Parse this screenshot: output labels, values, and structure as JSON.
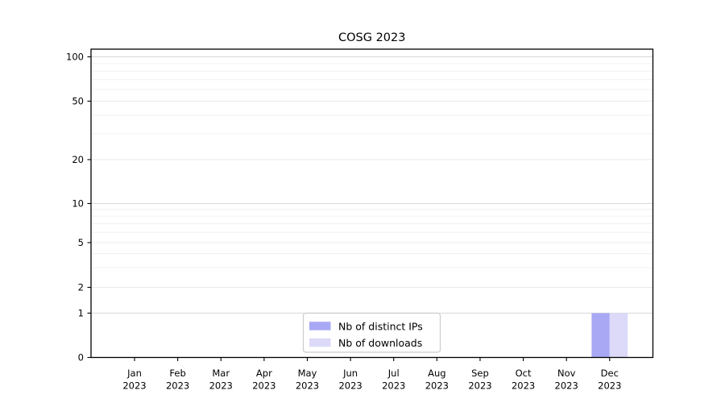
{
  "chart_data": {
    "type": "bar",
    "title": "COSG 2023",
    "categories": [
      "Jan",
      "Feb",
      "Mar",
      "Apr",
      "May",
      "Jun",
      "Jul",
      "Aug",
      "Sep",
      "Oct",
      "Nov",
      "Dec"
    ],
    "category_year": "2023",
    "series": [
      {
        "name": "Nb of distinct IPs",
        "color": "#a9a8f4",
        "values": [
          0,
          0,
          0,
          0,
          0,
          0,
          0,
          0,
          0,
          0,
          0,
          1
        ]
      },
      {
        "name": "Nb of downloads",
        "color": "#dcdaf8",
        "values": [
          0,
          0,
          0,
          0,
          0,
          0,
          0,
          0,
          0,
          0,
          0,
          1
        ]
      }
    ],
    "xlabel": "",
    "ylabel": "",
    "yticks": [
      0,
      1,
      2,
      5,
      10,
      20,
      50,
      100
    ],
    "yminorticks": [
      3,
      4,
      6,
      7,
      8,
      9,
      30,
      40,
      60,
      70,
      80,
      90
    ],
    "ylim": [
      0,
      113
    ],
    "yscale": "log-above-1-linear-below-1",
    "grid": "horizontal",
    "legend_position": "lower center",
    "colors": {
      "axis": "#000000",
      "grid_major": "#d8d8d8",
      "grid_labeled": "#eaeaea",
      "grid_minor": "#f0f0f0",
      "legend_border": "#cccccc",
      "background": "#ffffff"
    }
  }
}
